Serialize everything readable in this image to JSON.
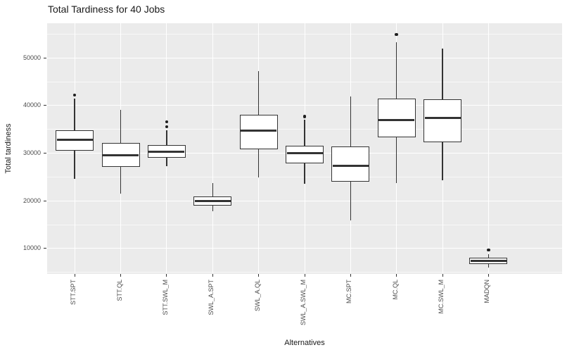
{
  "title": "Total Tardiness for 40 Jobs",
  "chart_data": {
    "type": "boxplot",
    "title": "Total Tardiness for 40 Jobs",
    "xlabel": "Alternatives",
    "ylabel": "Total tardiness",
    "ylim": [
      4600,
      57200
    ],
    "y_major_ticks": [
      10000,
      20000,
      30000,
      40000,
      50000
    ],
    "y_minor_ticks": [
      5000,
      15000,
      25000,
      35000,
      45000,
      55000
    ],
    "grid": "on",
    "legend": "none",
    "panel_bg": "#ebebeb",
    "grid_color": "#ffffff",
    "box_color": "#333333",
    "categories": [
      "STT.SPT",
      "STT.QL",
      "STT.SWL_M",
      "SWL_A.SPT",
      "SWL_A.QL",
      "SWL_A.SWL_M",
      "MC.SPT",
      "MC.QL",
      "MC.SWL_M",
      "MADQN"
    ],
    "series": [
      {
        "category": "STT.SPT",
        "low": 24600,
        "q1": 30400,
        "median": 32700,
        "q3": 34800,
        "high": 41400,
        "outliers": [
          42100
        ]
      },
      {
        "category": "STT.QL",
        "low": 21400,
        "q1": 27100,
        "median": 29500,
        "q3": 32100,
        "high": 39100,
        "outliers": []
      },
      {
        "category": "STT.SWL_M",
        "low": 27200,
        "q1": 29000,
        "median": 30200,
        "q3": 31700,
        "high": 34700,
        "outliers": [
          35500,
          36500
        ]
      },
      {
        "category": "SWL_A.SPT",
        "low": 17800,
        "q1": 19000,
        "median": 19900,
        "q3": 20800,
        "high": 23600,
        "outliers": []
      },
      {
        "category": "SWL_A.QL",
        "low": 24800,
        "q1": 30700,
        "median": 34600,
        "q3": 38000,
        "high": 47100,
        "outliers": []
      },
      {
        "category": "SWL_A.SWL_M",
        "low": 23500,
        "q1": 27800,
        "median": 29900,
        "q3": 31500,
        "high": 36900,
        "outliers": [
          37600
        ]
      },
      {
        "category": "MC.SPT",
        "low": 15800,
        "q1": 23900,
        "median": 27300,
        "q3": 31300,
        "high": 41900,
        "outliers": []
      },
      {
        "category": "MC.QL",
        "low": 23600,
        "q1": 33200,
        "median": 36900,
        "q3": 41400,
        "high": 53200,
        "outliers": [
          54800
        ]
      },
      {
        "category": "MC.SWL_M",
        "low": 24200,
        "q1": 32200,
        "median": 37300,
        "q3": 41200,
        "high": 51900,
        "outliers": []
      },
      {
        "category": "MADQN",
        "low": 5900,
        "q1": 6600,
        "median": 7300,
        "q3": 8000,
        "high": 8700,
        "outliers": [
          9600
        ]
      }
    ]
  }
}
